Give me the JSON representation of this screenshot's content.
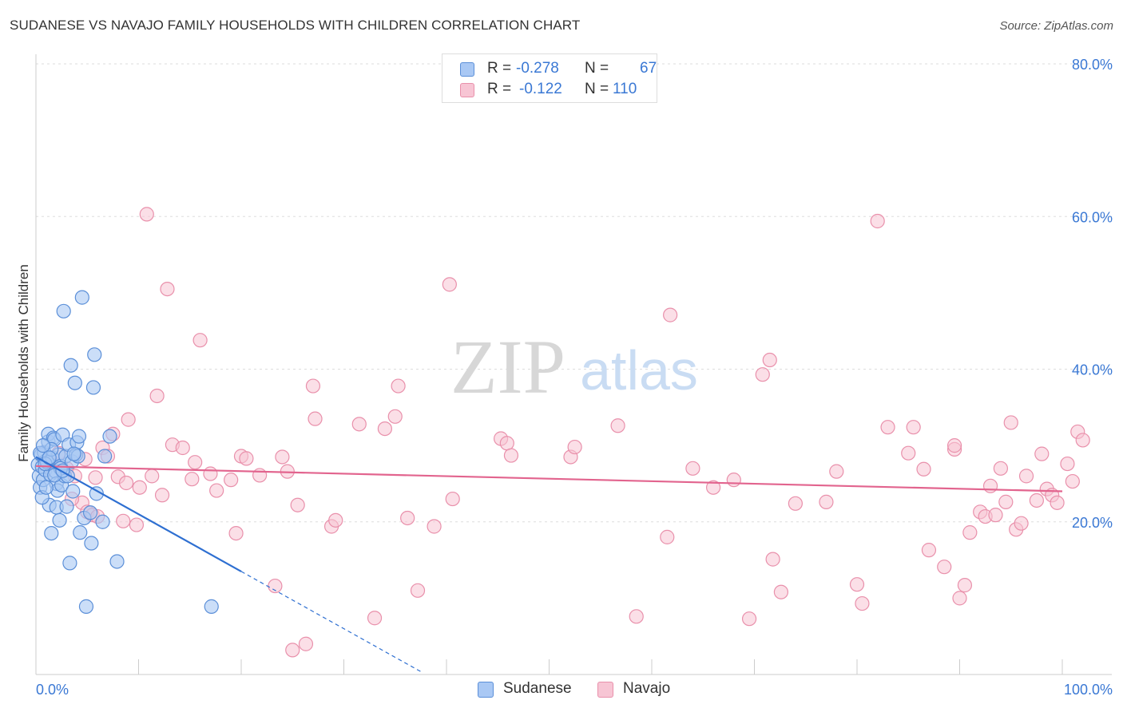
{
  "title": "SUDANESE VS NAVAJO FAMILY HOUSEHOLDS WITH CHILDREN CORRELATION CHART",
  "source": "Source: ZipAtlas.com",
  "watermark": {
    "zip": "ZIP",
    "atlas": "atlas"
  },
  "colors": {
    "sudanese_fill": "#a9c8f4",
    "sudanese_stroke": "#5b8fd8",
    "sudanese_line": "#2e6fd1",
    "navajo_fill": "#f7c5d4",
    "navajo_stroke": "#e990ab",
    "navajo_line": "#e2648e",
    "axis_text": "#3a78d4",
    "grid": "#dddddd"
  },
  "legend": {
    "sudanese": {
      "r_label": "R =",
      "r_value": "-0.278",
      "n_label": "N =",
      "n_value": "67"
    },
    "navajo": {
      "r_label": "R =",
      "r_value": "-0.122",
      "n_label": "N =",
      "n_value": "110"
    }
  },
  "bottom_legend": {
    "sudanese": "Sudanese",
    "navajo": "Navajo"
  },
  "chart_data": {
    "type": "scatter",
    "title": "SUDANESE VS NAVAJO FAMILY HOUSEHOLDS WITH CHILDREN CORRELATION CHART",
    "xlabel": "",
    "ylabel": "Family Households with Children",
    "xlim": [
      0,
      100
    ],
    "ylim": [
      0,
      80
    ],
    "x_tick_labels": [
      "0.0%",
      "100.0%"
    ],
    "y_ticks": [
      20,
      40,
      60,
      80
    ],
    "y_tick_labels": [
      "20.0%",
      "40.0%",
      "60.0%",
      "80.0%"
    ],
    "grid": true,
    "series": [
      {
        "name": "Sudanese",
        "r": -0.278,
        "n": 67,
        "trendline": {
          "x0": 0,
          "y0": 28.5,
          "x1": 20,
          "y1": 13.5,
          "dashed_to_x": 37.5
        },
        "points": [
          [
            0.2,
            27.5
          ],
          [
            0.3,
            26.0
          ],
          [
            0.4,
            24.5
          ],
          [
            0.5,
            28.8
          ],
          [
            0.6,
            27.2
          ],
          [
            0.7,
            25.5
          ],
          [
            0.8,
            29.1
          ],
          [
            0.9,
            26.8
          ],
          [
            1.0,
            28.0
          ],
          [
            1.1,
            27.8
          ],
          [
            1.2,
            30.5
          ],
          [
            1.2,
            31.5
          ],
          [
            1.3,
            22.2
          ],
          [
            1.4,
            26.2
          ],
          [
            1.5,
            18.5
          ],
          [
            1.6,
            28.4
          ],
          [
            1.7,
            31.0
          ],
          [
            1.8,
            30.8
          ],
          [
            1.9,
            26.6
          ],
          [
            2.0,
            25.0
          ],
          [
            2.0,
            21.9
          ],
          [
            2.1,
            24.1
          ],
          [
            2.2,
            28.8
          ],
          [
            2.3,
            20.2
          ],
          [
            2.4,
            27.3
          ],
          [
            2.5,
            24.8
          ],
          [
            2.6,
            31.4
          ],
          [
            2.7,
            47.6
          ],
          [
            2.8,
            26.0
          ],
          [
            2.9,
            28.6
          ],
          [
            3.0,
            22.0
          ],
          [
            3.1,
            26.0
          ],
          [
            3.2,
            30.1
          ],
          [
            3.3,
            14.6
          ],
          [
            3.4,
            40.5
          ],
          [
            3.5,
            27.9
          ],
          [
            3.6,
            24.0
          ],
          [
            3.8,
            38.2
          ],
          [
            3.9,
            28.8
          ],
          [
            4.0,
            30.4
          ],
          [
            4.1,
            28.6
          ],
          [
            4.2,
            31.2
          ],
          [
            4.3,
            18.6
          ],
          [
            4.5,
            49.4
          ],
          [
            4.7,
            20.5
          ],
          [
            4.9,
            8.9
          ],
          [
            5.3,
            21.2
          ],
          [
            5.4,
            17.2
          ],
          [
            5.6,
            37.6
          ],
          [
            5.7,
            41.9
          ],
          [
            5.9,
            23.7
          ],
          [
            6.5,
            20.0
          ],
          [
            6.7,
            28.6
          ],
          [
            7.2,
            31.2
          ],
          [
            7.9,
            14.8
          ],
          [
            17.1,
            8.9
          ],
          [
            0.6,
            23.2
          ],
          [
            1.0,
            24.5
          ],
          [
            1.5,
            29.5
          ],
          [
            2.4,
            27.0
          ],
          [
            0.4,
            29.0
          ],
          [
            0.9,
            27.6
          ],
          [
            1.8,
            26.1
          ],
          [
            3.7,
            28.9
          ],
          [
            2.6,
            26.7
          ],
          [
            1.3,
            28.4
          ],
          [
            0.7,
            30.0
          ]
        ]
      },
      {
        "name": "Navajo",
        "r": -0.122,
        "n": 110,
        "trendline": {
          "x0": 0,
          "y0": 27.3,
          "x1": 100,
          "y1": 24.0
        },
        "points": [
          [
            1.5,
            28.0
          ],
          [
            2.2,
            29.0
          ],
          [
            3.0,
            27.0
          ],
          [
            3.8,
            26.0
          ],
          [
            4.5,
            22.5
          ],
          [
            5.0,
            21.3
          ],
          [
            5.5,
            20.9
          ],
          [
            5.8,
            25.8
          ],
          [
            6.5,
            29.7
          ],
          [
            7.0,
            28.6
          ],
          [
            7.5,
            31.5
          ],
          [
            8.0,
            25.9
          ],
          [
            8.5,
            20.1
          ],
          [
            9.0,
            33.4
          ],
          [
            9.8,
            19.6
          ],
          [
            10.1,
            24.5
          ],
          [
            10.8,
            60.3
          ],
          [
            11.3,
            26.0
          ],
          [
            11.8,
            36.5
          ],
          [
            12.3,
            23.5
          ],
          [
            12.8,
            50.5
          ],
          [
            13.3,
            30.1
          ],
          [
            14.3,
            29.7
          ],
          [
            15.5,
            27.8
          ],
          [
            16.0,
            43.8
          ],
          [
            17.0,
            26.3
          ],
          [
            17.6,
            24.1
          ],
          [
            19.0,
            25.5
          ],
          [
            19.5,
            18.5
          ],
          [
            20.0,
            28.6
          ],
          [
            20.5,
            28.3
          ],
          [
            23.3,
            11.6
          ],
          [
            24.0,
            28.5
          ],
          [
            24.5,
            26.6
          ],
          [
            25.0,
            3.2
          ],
          [
            25.5,
            22.2
          ],
          [
            26.3,
            4.0
          ],
          [
            27.0,
            37.8
          ],
          [
            27.2,
            33.5
          ],
          [
            28.8,
            19.4
          ],
          [
            29.2,
            20.2
          ],
          [
            31.5,
            32.8
          ],
          [
            33.0,
            7.4
          ],
          [
            34.0,
            32.2
          ],
          [
            35.0,
            33.8
          ],
          [
            35.3,
            37.8
          ],
          [
            36.2,
            20.5
          ],
          [
            37.2,
            11.0
          ],
          [
            38.8,
            19.4
          ],
          [
            40.3,
            51.1
          ],
          [
            40.6,
            23.0
          ],
          [
            45.3,
            30.9
          ],
          [
            45.9,
            30.3
          ],
          [
            46.3,
            28.7
          ],
          [
            52.1,
            28.5
          ],
          [
            52.5,
            29.8
          ],
          [
            56.7,
            32.6
          ],
          [
            58.5,
            7.6
          ],
          [
            61.8,
            47.1
          ],
          [
            61.5,
            18.0
          ],
          [
            64.0,
            27.0
          ],
          [
            66.0,
            24.5
          ],
          [
            68.0,
            25.5
          ],
          [
            69.5,
            7.3
          ],
          [
            70.8,
            39.3
          ],
          [
            71.5,
            41.2
          ],
          [
            71.8,
            15.1
          ],
          [
            72.6,
            10.8
          ],
          [
            74.0,
            22.4
          ],
          [
            77.0,
            22.6
          ],
          [
            78.0,
            26.6
          ],
          [
            80.0,
            11.8
          ],
          [
            80.5,
            9.3
          ],
          [
            82.0,
            59.4
          ],
          [
            83.0,
            32.4
          ],
          [
            85.0,
            29.0
          ],
          [
            85.5,
            32.4
          ],
          [
            86.5,
            26.9
          ],
          [
            87.0,
            16.3
          ],
          [
            88.5,
            14.1
          ],
          [
            89.5,
            29.5
          ],
          [
            89.5,
            30.0
          ],
          [
            90.0,
            10.0
          ],
          [
            90.5,
            11.7
          ],
          [
            91.0,
            18.6
          ],
          [
            92.0,
            21.3
          ],
          [
            92.5,
            20.7
          ],
          [
            93.0,
            24.7
          ],
          [
            93.5,
            20.9
          ],
          [
            94.0,
            27.0
          ],
          [
            94.5,
            22.6
          ],
          [
            95.0,
            33.0
          ],
          [
            95.5,
            19.0
          ],
          [
            96.0,
            19.8
          ],
          [
            96.5,
            26.0
          ],
          [
            97.5,
            22.8
          ],
          [
            98.0,
            28.9
          ],
          [
            98.5,
            24.3
          ],
          [
            99.0,
            23.5
          ],
          [
            99.5,
            22.5
          ],
          [
            100.5,
            27.6
          ],
          [
            101.0,
            25.3
          ],
          [
            101.5,
            31.8
          ],
          [
            102.0,
            30.7
          ],
          [
            3.5,
            23.0
          ],
          [
            4.8,
            28.2
          ],
          [
            6.0,
            20.7
          ],
          [
            8.8,
            25.1
          ],
          [
            15.2,
            25.6
          ],
          [
            21.8,
            26.1
          ]
        ]
      }
    ]
  }
}
